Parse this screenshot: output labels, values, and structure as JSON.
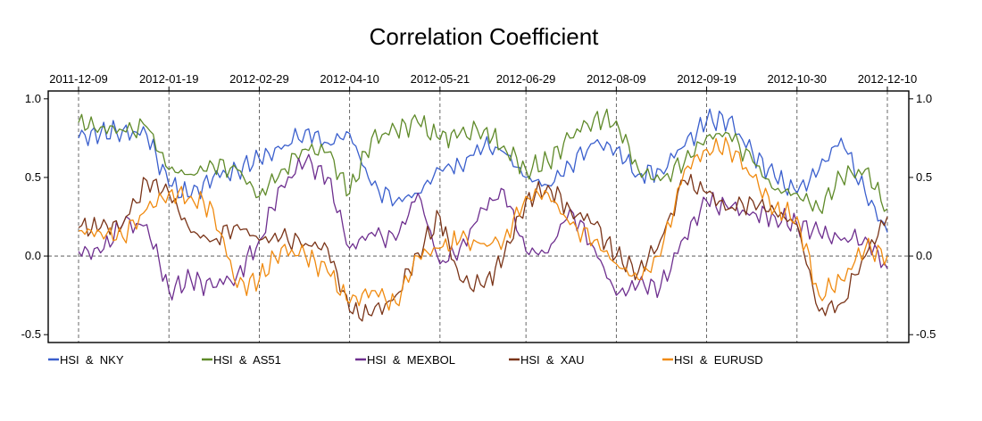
{
  "chart_data": {
    "type": "line",
    "title": "Correlation Coefficient",
    "xlabel": "",
    "ylabel": "",
    "ylim": [
      -0.55,
      1.05
    ],
    "yticks": [
      {
        "value": -0.5,
        "label": "-0.5"
      },
      {
        "value": 0.0,
        "label": "0.0"
      },
      {
        "value": 0.5,
        "label": "0.5"
      },
      {
        "value": 1.0,
        "label": "1.0"
      }
    ],
    "xticks": [
      "2011-12-09",
      "2012-01-19",
      "2012-02-29",
      "2012-04-10",
      "2012-05-21",
      "2012-06-29",
      "2012-08-09",
      "2012-09-19",
      "2012-10-30",
      "2012-12-10"
    ],
    "x": [
      "2011-12-09",
      "2011-12-19",
      "2011-12-29",
      "2012-01-09",
      "2012-01-19",
      "2012-01-29",
      "2012-02-08",
      "2012-02-19",
      "2012-02-29",
      "2012-03-10",
      "2012-03-21",
      "2012-03-31",
      "2012-04-10",
      "2012-04-20",
      "2012-05-01",
      "2012-05-11",
      "2012-05-21",
      "2012-05-30",
      "2012-06-10",
      "2012-06-19",
      "2012-06-29",
      "2012-07-09",
      "2012-07-19",
      "2012-07-30",
      "2012-08-09",
      "2012-08-19",
      "2012-08-29",
      "2012-09-09",
      "2012-09-19",
      "2012-09-29",
      "2012-10-10",
      "2012-10-20",
      "2012-10-30",
      "2012-11-09",
      "2012-11-19",
      "2012-11-30",
      "2012-12-10"
    ],
    "series": [
      {
        "name": "HSI  &  NKY",
        "color": "#3a5fcd",
        "values": [
          0.75,
          0.78,
          0.8,
          0.77,
          0.45,
          0.38,
          0.5,
          0.55,
          0.62,
          0.68,
          0.8,
          0.72,
          0.78,
          0.45,
          0.35,
          0.4,
          0.55,
          0.58,
          0.7,
          0.66,
          0.5,
          0.45,
          0.58,
          0.72,
          0.68,
          0.52,
          0.55,
          0.7,
          0.86,
          0.87,
          0.65,
          0.5,
          0.4,
          0.55,
          0.75,
          0.4,
          0.15
        ]
      },
      {
        "name": "HSI  &  AS51",
        "color": "#5f8a29",
        "values": [
          0.85,
          0.82,
          0.8,
          0.82,
          0.55,
          0.52,
          0.58,
          0.55,
          0.38,
          0.55,
          0.68,
          0.66,
          0.4,
          0.75,
          0.8,
          0.85,
          0.74,
          0.78,
          0.8,
          0.7,
          0.55,
          0.6,
          0.75,
          0.88,
          0.86,
          0.55,
          0.48,
          0.6,
          0.76,
          0.78,
          0.6,
          0.42,
          0.4,
          0.3,
          0.5,
          0.55,
          0.3
        ]
      },
      {
        "name": "HSI  &  MEXBOL",
        "color": "#6e2f8f",
        "values": [
          0.03,
          0.02,
          0.2,
          0.2,
          -0.22,
          -0.15,
          -0.2,
          -0.12,
          0.1,
          0.45,
          0.6,
          0.5,
          0.05,
          0.15,
          0.1,
          0.4,
          -0.05,
          0.05,
          0.3,
          0.42,
          0.03,
          0.02,
          0.3,
          0.05,
          -0.25,
          -0.18,
          -0.2,
          0.12,
          0.35,
          0.3,
          0.28,
          0.25,
          0.2,
          0.15,
          0.1,
          0.12,
          -0.08
        ]
      },
      {
        "name": "HSI  &  XAU",
        "color": "#7a3418",
        "values": [
          0.18,
          0.18,
          0.2,
          0.48,
          0.4,
          0.15,
          0.1,
          0.2,
          0.1,
          0.12,
          0.08,
          0.05,
          -0.35,
          -0.38,
          -0.25,
          0.02,
          0.25,
          -0.15,
          -0.2,
          0.0,
          0.35,
          0.45,
          0.3,
          0.2,
          0.0,
          -0.1,
          0.1,
          0.48,
          0.4,
          0.3,
          0.35,
          0.28,
          0.2,
          -0.35,
          -0.3,
          0.0,
          0.25
        ]
      },
      {
        "name": "HSI  &  EURUSD",
        "color": "#f08a0f",
        "values": [
          0.16,
          0.15,
          0.12,
          0.3,
          0.4,
          0.38,
          0.3,
          -0.2,
          -0.15,
          0.05,
          0.0,
          -0.1,
          -0.3,
          -0.22,
          -0.3,
          0.0,
          0.05,
          0.1,
          0.08,
          0.1,
          0.38,
          0.4,
          0.2,
          0.1,
          -0.05,
          -0.15,
          0.0,
          0.55,
          0.68,
          0.7,
          0.5,
          0.3,
          0.25,
          -0.25,
          -0.15,
          0.05,
          0.0
        ]
      }
    ],
    "grid": "dashed vertical lines at x ticks, dashed horizontal line at 0.0",
    "legend": "bottom"
  }
}
